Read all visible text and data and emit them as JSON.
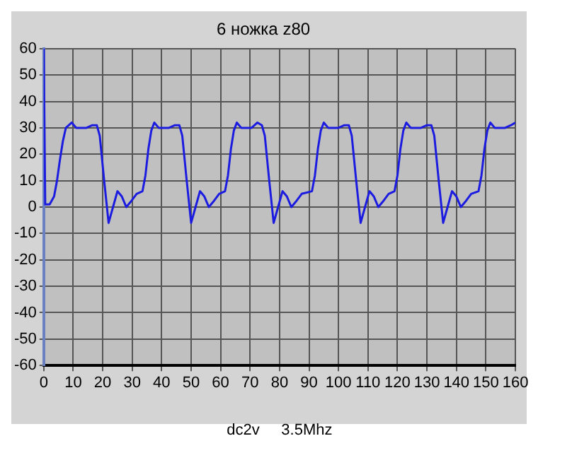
{
  "chart_data": {
    "type": "line",
    "title": "6 ножка z80",
    "xlabel": "dc2v     3.5Mhz",
    "x": [
      0,
      0.5,
      2,
      3.5,
      4.5,
      5.5,
      6.5,
      7.5,
      9.5,
      11,
      12.5,
      14.5,
      16.5,
      18,
      19,
      20.5,
      22,
      23.5,
      25,
      26.5,
      28,
      29.5,
      31.5,
      33.5,
      34.5,
      35.5,
      36.5,
      37.5,
      39,
      40.5,
      42.5,
      44.5,
      46,
      47,
      48.5,
      50,
      51.5,
      53,
      54.5,
      56,
      57.5,
      59.5,
      61.5,
      62.5,
      63.5,
      64.5,
      65.5,
      67,
      68.5,
      70.5,
      72.5,
      74,
      75,
      76.5,
      78,
      79.5,
      81,
      82.5,
      84,
      85.5,
      87.5,
      91,
      92,
      93,
      94,
      95,
      96.5,
      98,
      100,
      102,
      103.5,
      104.5,
      106,
      107.5,
      109,
      110.5,
      112,
      113.5,
      115,
      117,
      119,
      120,
      121,
      122,
      123,
      124.5,
      126,
      128,
      130,
      131.5,
      132.5,
      134,
      135.5,
      137,
      138.5,
      140,
      141.5,
      143,
      145,
      147.5,
      148.5,
      149.5,
      150.5,
      151.5,
      153,
      154.5,
      156.5,
      158.5,
      160
    ],
    "series": [
      {
        "color": "#1c1ce0",
        "values": [
          60,
          1,
          1,
          4,
          10,
          18,
          25,
          30,
          32,
          30,
          30,
          30,
          31,
          31,
          27,
          10,
          -6,
          0,
          6,
          4,
          0,
          2,
          5,
          6,
          12,
          22,
          29,
          32,
          30,
          30,
          30,
          31,
          31,
          27,
          10,
          -6,
          0,
          6,
          4,
          0,
          2,
          5,
          6,
          12,
          22,
          29,
          32,
          30,
          30,
          30,
          32,
          31,
          27,
          10,
          -6,
          0,
          6,
          4,
          0,
          2,
          5,
          6,
          12,
          22,
          29,
          32,
          30,
          30,
          30,
          31,
          31,
          27,
          10,
          -6,
          0,
          6,
          4,
          0,
          2,
          5,
          6,
          12,
          22,
          29,
          32,
          30,
          30,
          30,
          31,
          31,
          27,
          10,
          -6,
          0,
          6,
          4,
          0,
          2,
          5,
          6,
          12,
          22,
          29,
          32,
          30,
          30,
          30,
          31,
          32
        ]
      }
    ],
    "xlim": [
      0,
      160
    ],
    "xticks": [
      0,
      10,
      20,
      30,
      40,
      50,
      60,
      70,
      80,
      90,
      100,
      110,
      120,
      130,
      140,
      150,
      160
    ],
    "ylim": [
      -60,
      60
    ],
    "yticks": [
      -60,
      -50,
      -40,
      -30,
      -20,
      -10,
      0,
      10,
      20,
      30,
      40,
      50,
      60
    ],
    "grid": true,
    "legend": false,
    "marker": "none",
    "line_style": "solid"
  }
}
